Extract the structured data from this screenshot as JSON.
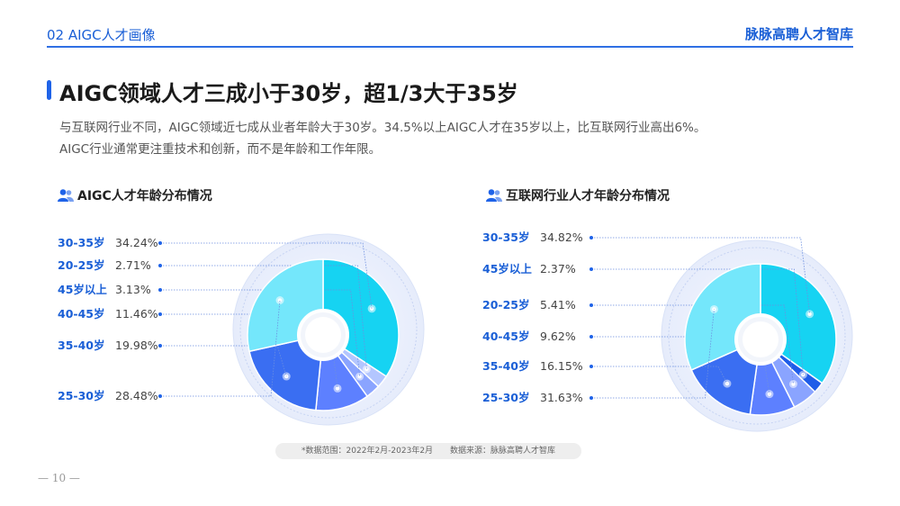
{
  "header": {
    "section": "02 AIGC人才画像",
    "brand": "脉脉高聘人才智库"
  },
  "title": "AIGC领域人才三成小于30岁，超1/3大于35岁",
  "description": [
    "与互联网行业不同，AIGC领域近七成从业者年龄大于30岁。34.5%以上AIGC人才在35岁以上，比互联网行业高出6%。",
    "AIGC行业通常更注重技术和创新，而不是年龄和工作年限。"
  ],
  "chart_data": [
    {
      "type": "pie",
      "title": "AIGC人才年龄分布情况",
      "categories": [
        "30-35岁",
        "20-25岁",
        "45岁以上",
        "40-45岁",
        "35-40岁",
        "25-30岁"
      ],
      "values": [
        34.24,
        2.71,
        3.13,
        11.46,
        19.98,
        28.48
      ],
      "value_labels": [
        "34.24%",
        "2.71%",
        "3.13%",
        "11.46%",
        "19.98%",
        "28.48%"
      ],
      "colors": [
        "#16d3f2",
        "#b3c6ff",
        "#8aa4ff",
        "#5d80ff",
        "#3a6ef2",
        "#74e7fb"
      ]
    },
    {
      "type": "pie",
      "title": "互联网行业人才年龄分布情况",
      "categories": [
        "30-35岁",
        "45岁以上",
        "20-25岁",
        "40-45岁",
        "35-40岁",
        "25-30岁"
      ],
      "values": [
        34.82,
        2.37,
        5.41,
        9.62,
        16.15,
        31.63
      ],
      "value_labels": [
        "34.82%",
        "2.37%",
        "5.41%",
        "9.62%",
        "16.15%",
        "31.63%"
      ],
      "colors": [
        "#16d3f2",
        "#1f5ce8",
        "#8aa4ff",
        "#5d80ff",
        "#3a6ef2",
        "#74e7fb"
      ]
    }
  ],
  "footnote": {
    "range": "*数据范围：2022年2月-2023年2月",
    "source": "数据来源：脉脉高聘人才智库"
  },
  "page_number": "— 10 —"
}
